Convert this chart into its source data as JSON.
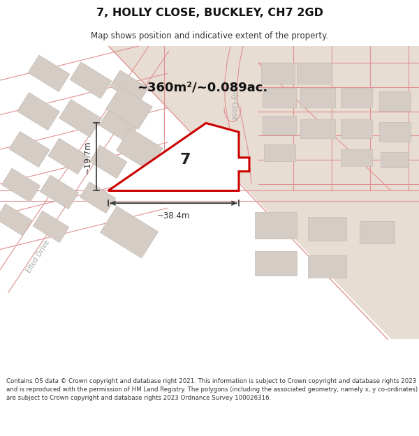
{
  "title": "7, HOLLY CLOSE, BUCKLEY, CH7 2GD",
  "subtitle": "Map shows position and indicative extent of the property.",
  "footer": "Contains OS data © Crown copyright and database right 2021. This information is subject to Crown copyright and database rights 2023 and is reproduced with the permission of HM Land Registry. The polygons (including the associated geometry, namely x, y co-ordinates) are subject to Crown copyright and database rights 2023 Ordnance Survey 100026316.",
  "map_bg": "#f2ede8",
  "field_color": "#e8ddd3",
  "road_line_color": "#e09090",
  "road_line_lw": 0.8,
  "building_face": "#d5cdc5",
  "building_edge": "#c5bdb5",
  "plot_fill": "#ffffff",
  "plot_outline": "#cc0000",
  "plot_lw": 2.2,
  "dim_color": "#333333",
  "label_color": "#aaaaaa",
  "area_text": "~360m²/~0.089ac.",
  "width_text": "~38.4m",
  "height_text": "~19.7m",
  "plot_number": "7"
}
